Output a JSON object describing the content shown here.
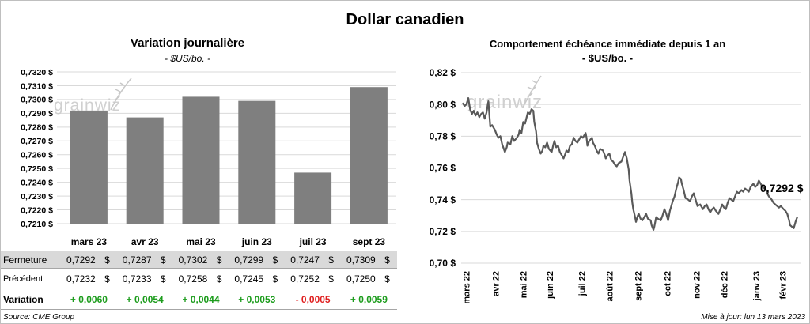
{
  "title": "Dollar canadien",
  "watermark": "grainwiz",
  "chart_data": [
    {
      "type": "bar",
      "title": "Variation journalière",
      "subtitle": "- $US/bo. -",
      "xlabel": "",
      "ylabel": "",
      "categories": [
        "mars 23",
        "avr 23",
        "mai 23",
        "juin 23",
        "juil 23",
        "sept 23"
      ],
      "values": [
        0.7292,
        0.7287,
        0.7302,
        0.7299,
        0.7247,
        0.7309
      ],
      "ylim": [
        0.721,
        0.732
      ],
      "yticks": [
        0.721,
        0.722,
        0.723,
        0.724,
        0.725,
        0.726,
        0.727,
        0.728,
        0.729,
        0.73,
        0.731,
        0.732
      ],
      "ytick_labels": [
        "0,7210 $",
        "0,7220 $",
        "0,7230 $",
        "0,7240 $",
        "0,7250 $",
        "0,7260 $",
        "0,7270 $",
        "0,7280 $",
        "0,7290 $",
        "0,7300 $",
        "0,7310 $",
        "0,7320 $"
      ],
      "grid": true,
      "bar_color": "#7f7f7f"
    },
    {
      "type": "line",
      "title": "Comportement échéance immédiate depuis 1 an",
      "subtitle": "- $US/bo. -",
      "xlabel": "",
      "ylabel": "",
      "xlim": [
        0,
        365
      ],
      "x_ticks": [
        4,
        36,
        66,
        95,
        130,
        160,
        191,
        223,
        255,
        285,
        320,
        349
      ],
      "x_tick_labels": [
        "mars 22",
        "avr 22",
        "mai 22",
        "juin 22",
        "juil 22",
        "août 22",
        "sept 22",
        "oct 22",
        "nov 22",
        "déc 22",
        "janv 23",
        "févr 23"
      ],
      "ylim": [
        0.7,
        0.82
      ],
      "yticks": [
        0.7,
        0.72,
        0.74,
        0.76,
        0.78,
        0.8,
        0.82
      ],
      "ytick_labels": [
        "0,70 $",
        "0,72 $",
        "0,74 $",
        "0,76 $",
        "0,78 $",
        "0,80 $",
        "0,82 $"
      ],
      "grid": true,
      "line_color": "#595959",
      "series": [
        {
          "points": [
            [
              0,
              0.801
            ],
            [
              2,
              0.799
            ],
            [
              4,
              0.8
            ],
            [
              6,
              0.804
            ],
            [
              8,
              0.797
            ],
            [
              10,
              0.794
            ],
            [
              12,
              0.796
            ],
            [
              14,
              0.793
            ],
            [
              16,
              0.795
            ],
            [
              18,
              0.792
            ],
            [
              20,
              0.794
            ],
            [
              22,
              0.795
            ],
            [
              24,
              0.791
            ],
            [
              26,
              0.795
            ],
            [
              28,
              0.802
            ],
            [
              30,
              0.786
            ],
            [
              32,
              0.787
            ],
            [
              35,
              0.784
            ],
            [
              37,
              0.781
            ],
            [
              39,
              0.779
            ],
            [
              41,
              0.78
            ],
            [
              43,
              0.775
            ],
            [
              46,
              0.77
            ],
            [
              48,
              0.773
            ],
            [
              49,
              0.776
            ],
            [
              52,
              0.775
            ],
            [
              54,
              0.78
            ],
            [
              56,
              0.777
            ],
            [
              59,
              0.779
            ],
            [
              61,
              0.781
            ],
            [
              62,
              0.784
            ],
            [
              64,
              0.782
            ],
            [
              66,
              0.789
            ],
            [
              68,
              0.788
            ],
            [
              71,
              0.795
            ],
            [
              73,
              0.794
            ],
            [
              75,
              0.797
            ],
            [
              77,
              0.796
            ],
            [
              78,
              0.789
            ],
            [
              80,
              0.783
            ],
            [
              81,
              0.776
            ],
            [
              83,
              0.772
            ],
            [
              85,
              0.769
            ],
            [
              87,
              0.771
            ],
            [
              88,
              0.774
            ],
            [
              90,
              0.773
            ],
            [
              92,
              0.776
            ],
            [
              94,
              0.772
            ],
            [
              97,
              0.77
            ],
            [
              99,
              0.775
            ],
            [
              100,
              0.777
            ],
            [
              102,
              0.773
            ],
            [
              104,
              0.774
            ],
            [
              106,
              0.77
            ],
            [
              108,
              0.768
            ],
            [
              110,
              0.766
            ],
            [
              112,
              0.769
            ],
            [
              113,
              0.771
            ],
            [
              115,
              0.77
            ],
            [
              117,
              0.774
            ],
            [
              119,
              0.775
            ],
            [
              121,
              0.779
            ],
            [
              123,
              0.777
            ],
            [
              125,
              0.776
            ],
            [
              127,
              0.778
            ],
            [
              129,
              0.78
            ],
            [
              131,
              0.779
            ],
            [
              134,
              0.782
            ],
            [
              135,
              0.779
            ],
            [
              136,
              0.774
            ],
            [
              138,
              0.777
            ],
            [
              141,
              0.779
            ],
            [
              142,
              0.776
            ],
            [
              144,
              0.774
            ],
            [
              146,
              0.771
            ],
            [
              148,
              0.769
            ],
            [
              150,
              0.772
            ],
            [
              153,
              0.771
            ],
            [
              155,
              0.768
            ],
            [
              156,
              0.766
            ],
            [
              158,
              0.768
            ],
            [
              160,
              0.769
            ],
            [
              162,
              0.765
            ],
            [
              164,
              0.764
            ],
            [
              166,
              0.762
            ],
            [
              168,
              0.761
            ],
            [
              170,
              0.763
            ],
            [
              173,
              0.764
            ],
            [
              175,
              0.767
            ],
            [
              177,
              0.77
            ],
            [
              179,
              0.766
            ],
            [
              181,
              0.759
            ],
            [
              182,
              0.752
            ],
            [
              184,
              0.744
            ],
            [
              185,
              0.738
            ],
            [
              186,
              0.734
            ],
            [
              188,
              0.729
            ],
            [
              189,
              0.726
            ],
            [
              191,
              0.73
            ],
            [
              192,
              0.731
            ],
            [
              194,
              0.728
            ],
            [
              196,
              0.727
            ],
            [
              198,
              0.729
            ],
            [
              200,
              0.731
            ],
            [
              202,
              0.728
            ],
            [
              205,
              0.727
            ],
            [
              206,
              0.724
            ],
            [
              208,
              0.721
            ],
            [
              209,
              0.723
            ],
            [
              211,
              0.729
            ],
            [
              213,
              0.728
            ],
            [
              216,
              0.727
            ],
            [
              218,
              0.73
            ],
            [
              220,
              0.734
            ],
            [
              222,
              0.731
            ],
            [
              224,
              0.727
            ],
            [
              226,
              0.733
            ],
            [
              229,
              0.739
            ],
            [
              231,
              0.742
            ],
            [
              233,
              0.747
            ],
            [
              235,
              0.751
            ],
            [
              236,
              0.754
            ],
            [
              238,
              0.753
            ],
            [
              239,
              0.75
            ],
            [
              241,
              0.746
            ],
            [
              243,
              0.741
            ],
            [
              246,
              0.74
            ],
            [
              248,
              0.739
            ],
            [
              250,
              0.742
            ],
            [
              252,
              0.744
            ],
            [
              254,
              0.74
            ],
            [
              256,
              0.736
            ],
            [
              259,
              0.737
            ],
            [
              262,
              0.734
            ],
            [
              264,
              0.736
            ],
            [
              266,
              0.737
            ],
            [
              268,
              0.734
            ],
            [
              270,
              0.732
            ],
            [
              272,
              0.734
            ],
            [
              274,
              0.735
            ],
            [
              276,
              0.733
            ],
            [
              279,
              0.731
            ],
            [
              281,
              0.734
            ],
            [
              283,
              0.737
            ],
            [
              285,
              0.735
            ],
            [
              287,
              0.734
            ],
            [
              289,
              0.738
            ],
            [
              291,
              0.741
            ],
            [
              293,
              0.74
            ],
            [
              295,
              0.739
            ],
            [
              297,
              0.742
            ],
            [
              299,
              0.745
            ],
            [
              301,
              0.744
            ],
            [
              304,
              0.746
            ],
            [
              306,
              0.745
            ],
            [
              308,
              0.747
            ],
            [
              310,
              0.746
            ],
            [
              312,
              0.745
            ],
            [
              314,
              0.748
            ],
            [
              317,
              0.75
            ],
            [
              319,
              0.748
            ],
            [
              321,
              0.749
            ],
            [
              323,
              0.752
            ],
            [
              324,
              0.751
            ],
            [
              326,
              0.749
            ],
            [
              329,
              0.747
            ],
            [
              331,
              0.746
            ],
            [
              332,
              0.744
            ],
            [
              334,
              0.742
            ],
            [
              337,
              0.74
            ],
            [
              339,
              0.738
            ],
            [
              341,
              0.737
            ],
            [
              343,
              0.736
            ],
            [
              345,
              0.735
            ],
            [
              347,
              0.736
            ],
            [
              350,
              0.734
            ],
            [
              352,
              0.733
            ],
            [
              354,
              0.731
            ],
            [
              356,
              0.727
            ],
            [
              357,
              0.724
            ],
            [
              359,
              0.723
            ],
            [
              361,
              0.722
            ],
            [
              363,
              0.726
            ],
            [
              365,
              0.7292
            ]
          ]
        }
      ],
      "annotation": {
        "text": "0,7292 $",
        "value": 0.7292
      }
    }
  ],
  "table": {
    "currency": "$",
    "fermeture": {
      "label": "Fermeture",
      "values": [
        "0,7292",
        "0,7287",
        "0,7302",
        "0,7299",
        "0,7247",
        "0,7309"
      ]
    },
    "precedent": {
      "label": "Précédent",
      "values": [
        "0,7232",
        "0,7233",
        "0,7258",
        "0,7245",
        "0,7252",
        "0,7250"
      ]
    },
    "variation": {
      "label": "Variation",
      "values": [
        "+ 0,0060",
        "+ 0,0054",
        "+ 0,0044",
        "+ 0,0053",
        "- 0,0005",
        "+ 0,0059"
      ]
    },
    "positive_color": "#1c9c1c",
    "negative_color": "#e02020"
  },
  "footer": {
    "source": "Source: CME Group",
    "updated": "Mise à jour: lun 13 mars 2023"
  },
  "colors": {
    "gridline": "#d9d9d9",
    "watermark": "#c8c8c8"
  }
}
